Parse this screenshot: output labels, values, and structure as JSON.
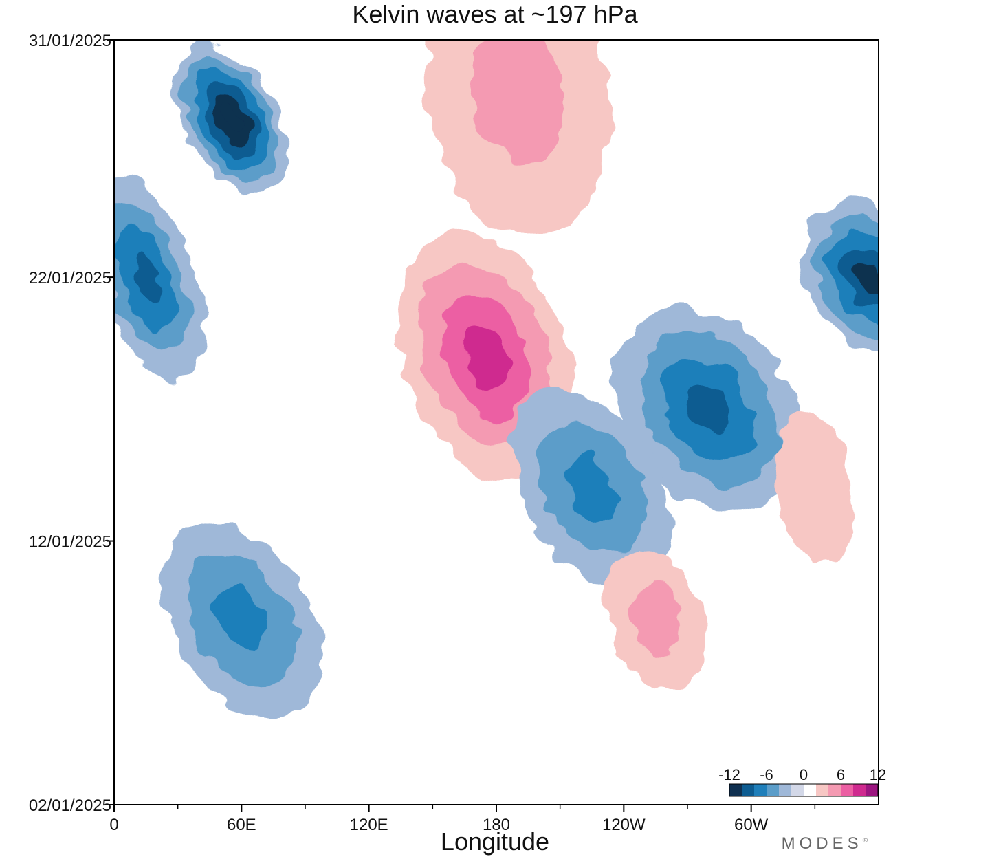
{
  "chart_data": {
    "type": "heatmap",
    "title": "Kelvin waves at ~197 hPa",
    "xlabel": "Longitude",
    "ylabel": "",
    "x_ticks": [
      "0",
      "60E",
      "120E",
      "180",
      "120W",
      "60W"
    ],
    "y_ticks": [
      "31/01/2025",
      "22/01/2025",
      "12/01/2025",
      "02/01/2025"
    ],
    "xlim": [
      0,
      360
    ],
    "ylim": [
      "02/01/2025",
      "31/01/2025"
    ],
    "colorbar": {
      "labels": [
        "-12",
        "-6",
        "0",
        "6",
        "12"
      ],
      "levels": [
        -12,
        -10,
        -8,
        -6,
        -4,
        -2,
        0,
        2,
        4,
        6,
        8,
        10,
        12
      ],
      "colors": [
        "#0f3050",
        "#0d5c91",
        "#1f7fba",
        "#5b9dc9",
        "#9fb8d8",
        "#d3d8e8",
        "#ffffff",
        "#f7c7c4",
        "#f49ab2",
        "#ec5fa3",
        "#cf2a8f",
        "#9c1680"
      ]
    },
    "features": [
      {
        "sign": "neg",
        "value": -13,
        "lon": 55,
        "date": "28/01/2025"
      },
      {
        "sign": "neg",
        "value": -9,
        "lon": 15,
        "date": "22/01/2025"
      },
      {
        "sign": "pos",
        "value": 9,
        "lon": 175,
        "date": "19/01/2025"
      },
      {
        "sign": "pos",
        "value": 5,
        "lon": 190,
        "date": "29/01/2025"
      },
      {
        "sign": "neg",
        "value": -11,
        "lon": 355,
        "date": "22/01/2025"
      },
      {
        "sign": "neg",
        "value": -8,
        "lon": 280,
        "date": "17/01/2025"
      },
      {
        "sign": "neg",
        "value": -6,
        "lon": 225,
        "date": "14/01/2025"
      },
      {
        "sign": "neg",
        "value": -6,
        "lon": 60,
        "date": "09/01/2025"
      },
      {
        "sign": "pos",
        "value": 4,
        "lon": 255,
        "date": "09/01/2025"
      },
      {
        "sign": "pos",
        "value": 3,
        "lon": 330,
        "date": "14/01/2025"
      }
    ]
  },
  "branding": {
    "text": "MODES",
    "mark": "®"
  }
}
